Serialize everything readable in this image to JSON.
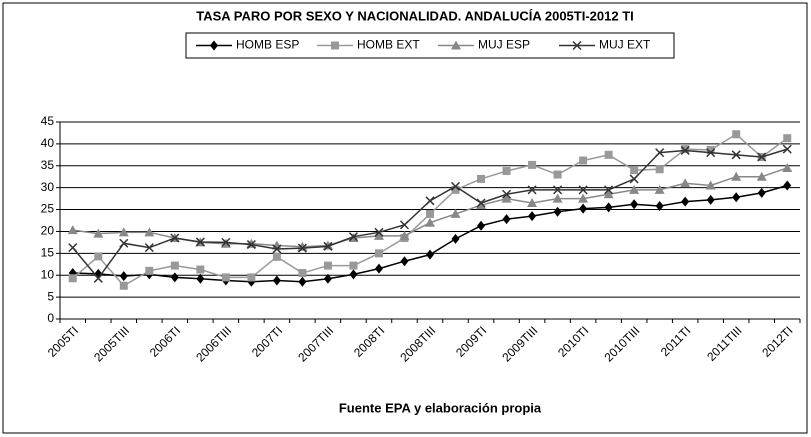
{
  "chart_data": {
    "type": "line",
    "title": "TASA PARO POR SEXO Y NACIONALIDAD. ANDALUCÍA 2005TI-2012 TI",
    "source": "Fuente EPA y elaboración propia",
    "categories": [
      "2005TI",
      null,
      "2005TIII",
      null,
      "2006TI",
      null,
      "2006TIII",
      null,
      "2007TI",
      null,
      "2007TIII",
      null,
      "2008TI",
      null,
      "2008TIII",
      null,
      "2009TI",
      null,
      "2009TIII",
      null,
      "2010TI",
      null,
      "2010TIII",
      null,
      "2011TI",
      null,
      "2011TIII",
      null,
      "2012TI"
    ],
    "series": [
      {
        "name": "HOMB ESP",
        "color": "#000000",
        "marker": "diamond",
        "values": [
          10.5,
          10.3,
          9.8,
          10.2,
          9.5,
          9.2,
          8.8,
          8.5,
          8.8,
          8.5,
          9.2,
          10.2,
          11.5,
          13.2,
          14.7,
          18.3,
          21.3,
          22.8,
          23.5,
          24.5,
          25.2,
          25.5,
          26.2,
          25.8,
          26.8,
          27.2,
          27.8,
          28.8,
          30.5
        ]
      },
      {
        "name": "HOMB EXT",
        "color": "#999999",
        "marker": "square",
        "values": [
          9.3,
          14.3,
          7.6,
          11,
          12.2,
          11.3,
          9.5,
          9.5,
          14.2,
          10.5,
          12.2,
          12.2,
          15,
          18.5,
          24,
          29.5,
          32,
          33.8,
          35.2,
          33,
          36.2,
          37.5,
          34,
          34.2,
          38.8,
          38.6,
          42.2,
          37,
          41.3
        ]
      },
      {
        "name": "MUJ ESP",
        "color": "#888888",
        "marker": "triangle",
        "values": [
          20.3,
          19.5,
          19.8,
          19.8,
          18.5,
          17.5,
          17.2,
          17.2,
          16.8,
          16.5,
          16.8,
          18.5,
          19,
          19,
          22,
          24,
          26,
          27.5,
          26.5,
          27.5,
          27.5,
          28.5,
          29.5,
          29.5,
          31,
          30.5,
          32.5,
          32.5,
          34.5
        ]
      },
      {
        "name": "MUJ EXT",
        "color": "#333333",
        "marker": "x",
        "values": [
          16.3,
          9.3,
          17.3,
          16.3,
          18.5,
          17.6,
          17.5,
          17,
          16,
          16.2,
          16.6,
          18.8,
          19.8,
          21.5,
          27,
          30.3,
          26.5,
          28.5,
          29.5,
          29.5,
          29.5,
          29.5,
          32,
          38,
          38.5,
          38,
          37.5,
          37,
          38.8
        ]
      }
    ],
    "ylim": [
      0,
      45
    ],
    "yticks": [
      0,
      5,
      10,
      15,
      20,
      25,
      30,
      35,
      40,
      45
    ],
    "grid": true
  }
}
